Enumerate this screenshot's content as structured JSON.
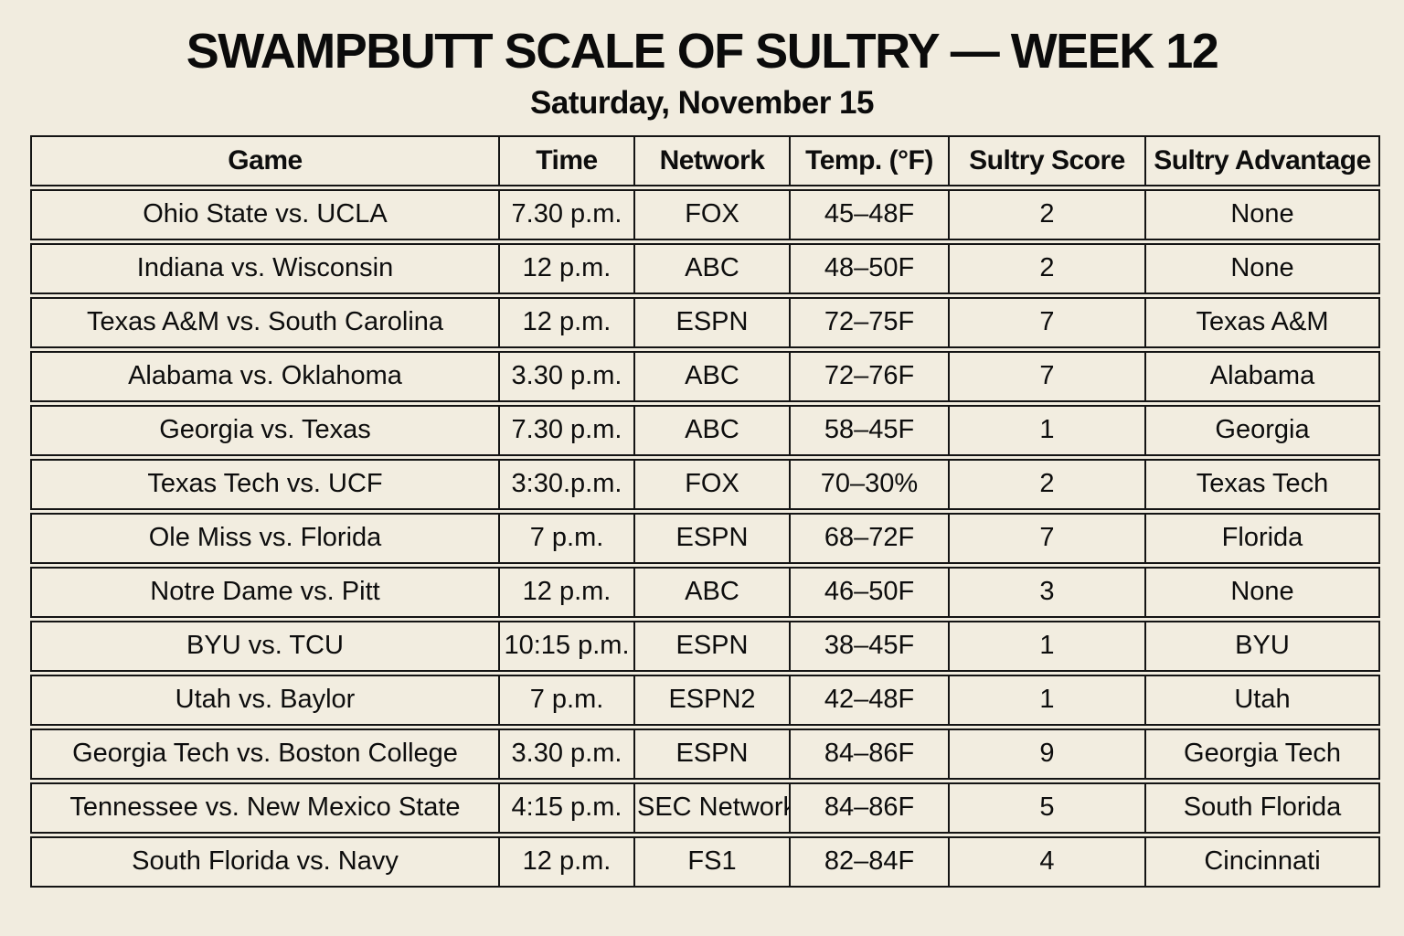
{
  "colors": {
    "background": "#f1ecdf",
    "cell_background": "#f2ede0",
    "border": "#141414",
    "text": "#0d0d0d"
  },
  "chart_data": {
    "type": "table",
    "title": "SWAMPBUTT SCALE OF SULTRY — WEEK 12",
    "subtitle": "Saturday, November 15",
    "columns": [
      "Game",
      "Time",
      "Network",
      "Temp. (°F)",
      "Sultry Score",
      "Sultry Advantage"
    ],
    "rows": [
      {
        "game": "Ohio State vs. UCLA",
        "time": "7.30 p.m.",
        "network": "FOX",
        "temp": "45–48F",
        "score": "2",
        "advantage": "None"
      },
      {
        "game": "Indiana vs. Wisconsin",
        "time": "12 p.m.",
        "network": "ABC",
        "temp": "48–50F",
        "score": "2",
        "advantage": "None"
      },
      {
        "game": "Texas A&M vs. South Carolina",
        "time": "12 p.m.",
        "network": "ESPN",
        "temp": "72–75F",
        "score": "7",
        "advantage": "Texas A&M"
      },
      {
        "game": "Alabama vs. Oklahoma",
        "time": "3.30 p.m.",
        "network": "ABC",
        "temp": "72–76F",
        "score": "7",
        "advantage": "Alabama"
      },
      {
        "game": "Georgia vs. Texas",
        "time": "7.30 p.m.",
        "network": "ABC",
        "temp": "58–45F",
        "score": "1",
        "advantage": "Georgia"
      },
      {
        "game": "Texas Tech vs. UCF",
        "time": "3:30.p.m.",
        "network": "FOX",
        "temp": "70–30%",
        "score": "2",
        "advantage": "Texas Tech"
      },
      {
        "game": "Ole Miss vs. Florida",
        "time": "7 p.m.",
        "network": "ESPN",
        "temp": "68–72F",
        "score": "7",
        "advantage": "Florida"
      },
      {
        "game": "Notre Dame vs. Pitt",
        "time": "12 p.m.",
        "network": "ABC",
        "temp": "46–50F",
        "score": "3",
        "advantage": "None"
      },
      {
        "game": "BYU vs. TCU",
        "time": "10:15 p.m.",
        "network": "ESPN",
        "temp": "38–45F",
        "score": "1",
        "advantage": "BYU"
      },
      {
        "game": "Utah vs. Baylor",
        "time": "7 p.m.",
        "network": "ESPN2",
        "temp": "42–48F",
        "score": "1",
        "advantage": "Utah"
      },
      {
        "game": "Georgia Tech vs. Boston College",
        "time": "3.30 p.m.",
        "network": "ESPN",
        "temp": "84–86F",
        "score": "9",
        "advantage": "Georgia Tech"
      },
      {
        "game": "Tennessee vs. New Mexico State",
        "time": "4:15 p.m.",
        "network": "SEC Network",
        "temp": "84–86F",
        "score": "5",
        "advantage": "South Florida"
      },
      {
        "game": "South Florida vs. Navy",
        "time": "12 p.m.",
        "network": "FS1",
        "temp": "82–84F",
        "score": "4",
        "advantage": "Cincinnati"
      }
    ]
  }
}
